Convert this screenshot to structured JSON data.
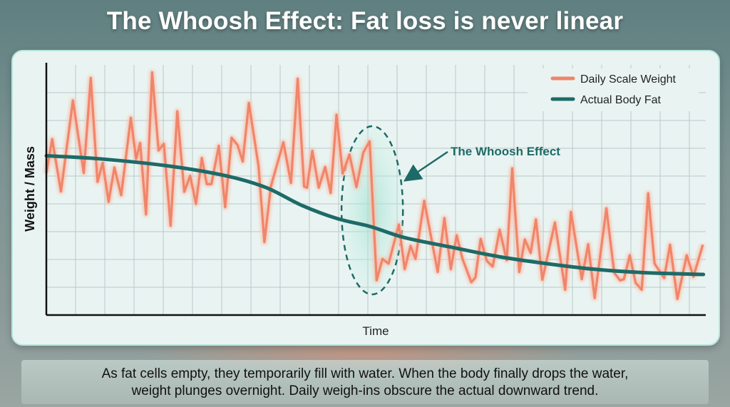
{
  "title": "The Whoosh Effect: Fat loss is never linear",
  "caption": {
    "line1": "As fat cells empty, they temporarily fill with water. When the body finally drops the water,",
    "line2": "weight plunges overnight. Daily weigh-ins obscure the actual downward trend."
  },
  "chart_data": {
    "type": "line",
    "title": "",
    "xlabel": "Time",
    "ylabel": "Weight / Mass",
    "xlim": [
      0,
      22.6
    ],
    "ylim": [
      0,
      9
    ],
    "grid": true,
    "tick_labels_shown": false,
    "legend_position": "top-right",
    "colors": {
      "daily": "#f0856a",
      "fat": "#1e6a67",
      "annotation": "#1e6a67"
    },
    "series": [
      {
        "name": "Daily Scale Weight",
        "points": [
          [
            0,
            5.1
          ],
          [
            0.2,
            6.33
          ],
          [
            0.5,
            4.44
          ],
          [
            0.91,
            7.72
          ],
          [
            1.28,
            5.11
          ],
          [
            1.52,
            8.53
          ],
          [
            1.75,
            4.79
          ],
          [
            1.93,
            5.48
          ],
          [
            2.13,
            4.07
          ],
          [
            2.33,
            5.31
          ],
          [
            2.56,
            4.31
          ],
          [
            2.89,
            7.1
          ],
          [
            3.07,
            5.61
          ],
          [
            3.21,
            6.19
          ],
          [
            3.41,
            3.62
          ],
          [
            3.62,
            8.73
          ],
          [
            3.84,
            5.92
          ],
          [
            4.02,
            6.16
          ],
          [
            4.25,
            3.21
          ],
          [
            4.48,
            7.33
          ],
          [
            4.72,
            4.43
          ],
          [
            4.92,
            5.01
          ],
          [
            5.12,
            4.0
          ],
          [
            5.32,
            5.65
          ],
          [
            5.49,
            4.71
          ],
          [
            5.65,
            4.71
          ],
          [
            5.9,
            6.09
          ],
          [
            6.12,
            3.88
          ],
          [
            6.34,
            6.38
          ],
          [
            6.54,
            6.12
          ],
          [
            6.72,
            5.52
          ],
          [
            6.93,
            7.63
          ],
          [
            7.26,
            5.35
          ],
          [
            7.46,
            2.62
          ],
          [
            7.68,
            4.62
          ],
          [
            8.11,
            6.22
          ],
          [
            8.37,
            4.75
          ],
          [
            8.6,
            8.5
          ],
          [
            8.82,
            4.62
          ],
          [
            8.92,
            4.58
          ],
          [
            9.1,
            5.91
          ],
          [
            9.32,
            4.58
          ],
          [
            9.54,
            5.33
          ],
          [
            9.73,
            4.39
          ],
          [
            9.93,
            7.21
          ],
          [
            10.14,
            5.09
          ],
          [
            10.37,
            5.78
          ],
          [
            10.61,
            4.6
          ],
          [
            10.85,
            5.86
          ],
          [
            11.06,
            6.25
          ],
          [
            11.3,
            1.25
          ],
          [
            11.5,
            2.02
          ],
          [
            11.71,
            1.85
          ],
          [
            12.06,
            3.26
          ],
          [
            12.26,
            1.65
          ],
          [
            12.46,
            2.49
          ],
          [
            12.63,
            2.02
          ],
          [
            12.93,
            4.11
          ],
          [
            13.39,
            1.55
          ],
          [
            13.62,
            3.49
          ],
          [
            13.84,
            1.65
          ],
          [
            14.04,
            2.87
          ],
          [
            14.24,
            2.02
          ],
          [
            14.54,
            1.18
          ],
          [
            14.68,
            1.35
          ],
          [
            14.86,
            2.74
          ],
          [
            15.07,
            1.95
          ],
          [
            15.27,
            1.74
          ],
          [
            15.51,
            3.07
          ],
          [
            15.75,
            1.97
          ],
          [
            15.94,
            5.28
          ],
          [
            16.18,
            1.55
          ],
          [
            16.37,
            2.72
          ],
          [
            16.57,
            2.23
          ],
          [
            16.75,
            3.44
          ],
          [
            16.97,
            1.27
          ],
          [
            17.4,
            3.33
          ],
          [
            17.75,
            0.91
          ],
          [
            17.95,
            3.71
          ],
          [
            18.32,
            1.29
          ],
          [
            18.54,
            2.55
          ],
          [
            18.76,
            0.61
          ],
          [
            19.16,
            3.84
          ],
          [
            19.43,
            1.52
          ],
          [
            19.63,
            1.25
          ],
          [
            19.76,
            1.29
          ],
          [
            19.96,
            2.15
          ],
          [
            20.16,
            1.16
          ],
          [
            20.37,
            0.91
          ],
          [
            20.59,
            4.38
          ],
          [
            20.81,
            1.85
          ],
          [
            21.14,
            1.33
          ],
          [
            21.34,
            2.53
          ],
          [
            21.59,
            0.58
          ],
          [
            21.91,
            2.15
          ],
          [
            22.14,
            1.38
          ],
          [
            22.46,
            2.53
          ]
        ]
      },
      {
        "name": "Actual Body Fat",
        "points": [
          [
            0,
            5.73
          ],
          [
            1.83,
            5.62
          ],
          [
            4.27,
            5.35
          ],
          [
            6.14,
            5.01
          ],
          [
            7.51,
            4.59
          ],
          [
            8.73,
            3.95
          ],
          [
            9.95,
            3.47
          ],
          [
            11.1,
            3.18
          ],
          [
            12.24,
            2.79
          ],
          [
            13.86,
            2.44
          ],
          [
            15.49,
            2.1
          ],
          [
            17.12,
            1.85
          ],
          [
            18.73,
            1.65
          ],
          [
            20.37,
            1.53
          ],
          [
            22.48,
            1.46
          ]
        ]
      }
    ],
    "annotations": [
      {
        "label": "The Whoosh Effect",
        "highlight_x_range": [
          10.1,
          12.2
        ]
      }
    ]
  }
}
